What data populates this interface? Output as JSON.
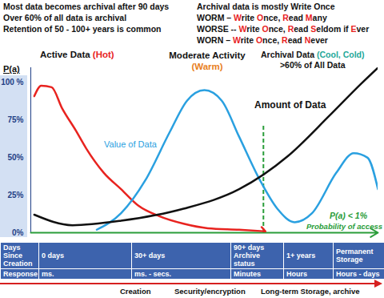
{
  "header": {
    "left": [
      "Most data becomes archival after 90 days",
      "Over 60% of all data is archival",
      "Retention of 50 - 100+ years is common"
    ],
    "right": [
      "Archival data is mostly Write Once",
      "WORM – Write Once, Read Many",
      "WORSE -- Write Once, Read Seldom if Ever",
      "WORN – Write Once, Read Never"
    ]
  },
  "chart_data": {
    "type": "line",
    "ylabel": "P(a)",
    "xlim": [
      0,
      100
    ],
    "ylim": [
      0,
      110
    ],
    "yticks": [
      {
        "value": 0,
        "label": "0%"
      },
      {
        "value": 25,
        "label": "25%"
      },
      {
        "value": 50,
        "label": "50%"
      },
      {
        "value": 75,
        "label": "75%"
      },
      {
        "value": 100,
        "label": "100 %"
      }
    ],
    "tick_labels": "y",
    "grid": false,
    "series": [
      {
        "name": "Active Data (Hot)",
        "color": "#e8231f",
        "marker": "arrow",
        "line_style": "solid",
        "x": [
          1,
          3,
          6,
          9,
          13,
          16,
          21,
          26,
          31,
          37,
          44,
          51,
          60,
          67
        ],
        "values": [
          91,
          98,
          97,
          83,
          68,
          56,
          40,
          29,
          18,
          11,
          6,
          3,
          2,
          1
        ]
      },
      {
        "name": "Value of Data",
        "color": "#2aa0e0",
        "line_style": "solid",
        "x": [
          19,
          26,
          33,
          40,
          45,
          50,
          55,
          60,
          66,
          71,
          76,
          81,
          88,
          93,
          97,
          100
        ],
        "values": [
          2,
          13,
          35,
          67,
          88,
          95,
          88,
          64,
          35,
          16,
          7,
          13,
          40,
          53,
          50,
          29
        ]
      },
      {
        "name": "Amount of Data",
        "color": "#111111",
        "marker": "arrow",
        "line_style": "solid",
        "x": [
          1,
          12,
          26,
          44,
          60,
          74,
          86,
          95,
          100
        ],
        "values": [
          12,
          5,
          8,
          16,
          29,
          51,
          78,
          99,
          110
        ]
      }
    ],
    "regions": [
      {
        "text": "Moderate Activity (Warm)",
        "color": "#e8801e"
      },
      {
        "text": "Archival Data (Cool, Cold)",
        "color": "#1fa89a",
        "note": ">60% of All Data"
      }
    ],
    "threshold": {
      "x": 67,
      "y1": 0,
      "y2": 72,
      "color": "#2a9d3a",
      "line_style": "dashed",
      "labels": [
        "P(a) < 1%",
        "Probability of access"
      ]
    }
  },
  "table": {
    "rows": [
      [
        "Days Since Creation",
        "0 days",
        "30+ days",
        "90+ days\nArchive status",
        "1+ years",
        "Permanent Storage"
      ],
      [
        "Response",
        "ms.",
        "ms. - secs.",
        "Minutes",
        "Hours",
        "Hours - days"
      ]
    ]
  },
  "timeline": {
    "labels": [
      "Creation",
      "Security/encryption",
      "Long-term Storage, archive"
    ],
    "color": "#d62020"
  }
}
